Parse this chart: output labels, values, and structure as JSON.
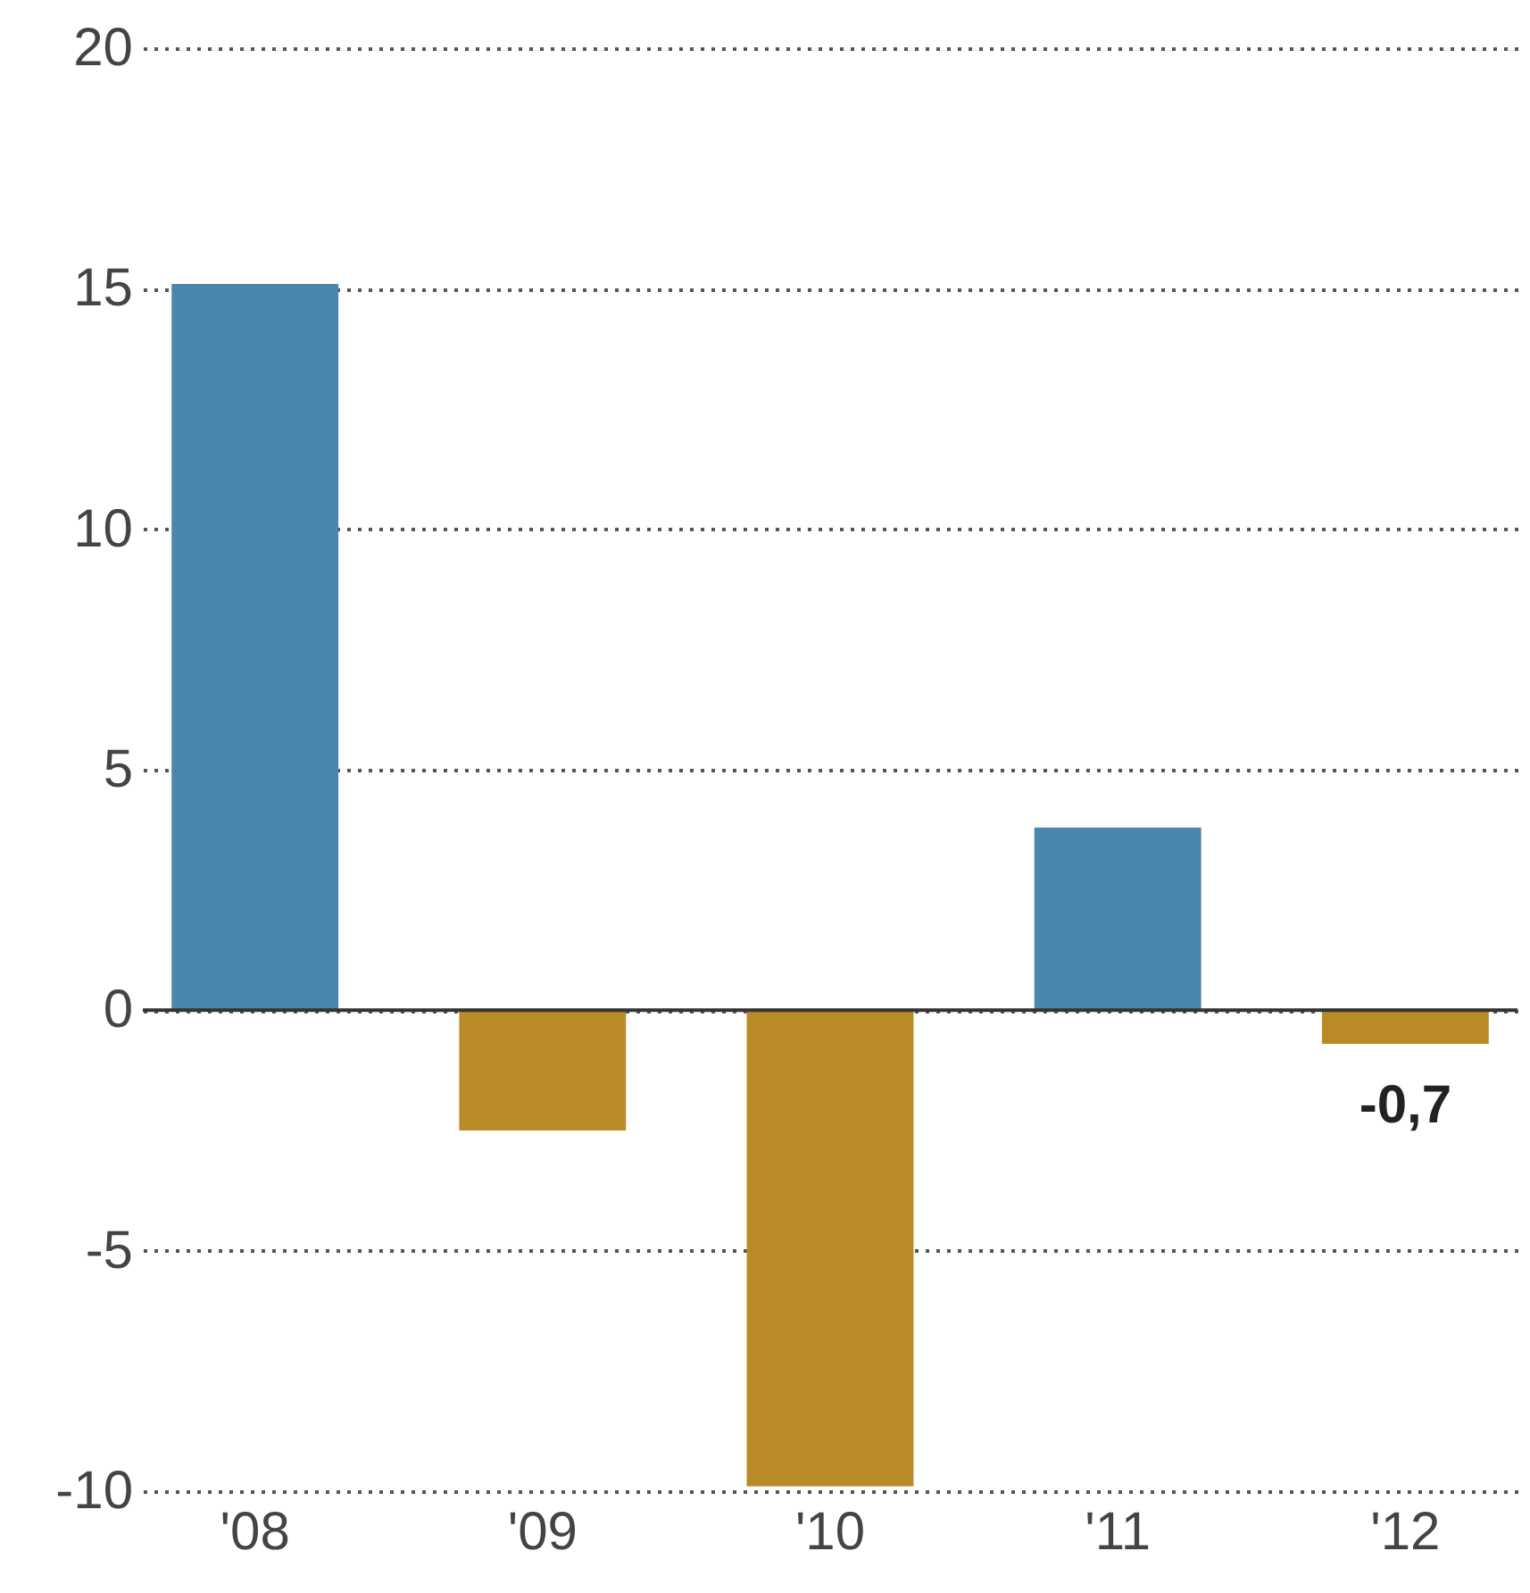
{
  "chart_data": {
    "type": "bar",
    "categories": [
      "'08",
      "'09",
      "'10",
      "'11",
      "'12"
    ],
    "values": [
      15.1,
      -2.5,
      -9.9,
      3.8,
      -0.7
    ],
    "colors": [
      "#4a86ad",
      "#b98b27",
      "#b98b27",
      "#4a86ad",
      "#b98b27"
    ],
    "value_labels": [
      null,
      null,
      null,
      null,
      "-0,7"
    ],
    "ylim": [
      -10,
      20
    ],
    "yticks": [
      -10,
      -5,
      0,
      5,
      10,
      15,
      20
    ],
    "grid": "y",
    "ref_lines": [
      {
        "axis": "y",
        "value": 0,
        "color": "#333333"
      }
    ]
  }
}
